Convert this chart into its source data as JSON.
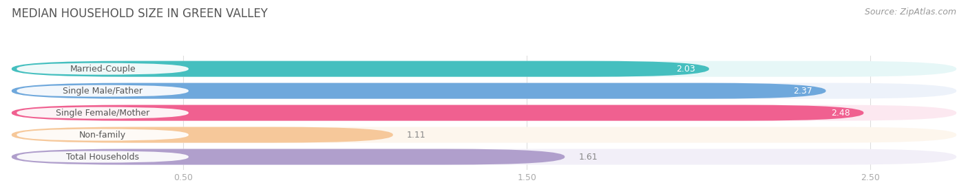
{
  "title": "MEDIAN HOUSEHOLD SIZE IN GREEN VALLEY",
  "source": "Source: ZipAtlas.com",
  "categories": [
    "Married-Couple",
    "Single Male/Father",
    "Single Female/Mother",
    "Non-family",
    "Total Households"
  ],
  "values": [
    2.03,
    2.37,
    2.48,
    1.11,
    1.61
  ],
  "bar_colors": [
    "#45bfbf",
    "#6fa8dc",
    "#f06090",
    "#f6c89a",
    "#b09fcc"
  ],
  "bar_bg_colors": [
    "#e6f7f7",
    "#edf2fa",
    "#fce8f0",
    "#fdf6ed",
    "#f2eff8"
  ],
  "value_colors": [
    "#ffffff",
    "#ffffff",
    "#ffffff",
    "#888888",
    "#888888"
  ],
  "xlim": [
    0,
    2.75
  ],
  "xticks": [
    0.5,
    1.5,
    2.5
  ],
  "title_fontsize": 12,
  "source_fontsize": 9,
  "bar_label_fontsize": 9,
  "value_fontsize": 9,
  "tick_fontsize": 9,
  "background_color": "#ffffff",
  "axes_bg_color": "#ffffff",
  "grid_color": "#dddddd",
  "tick_color": "#aaaaaa"
}
